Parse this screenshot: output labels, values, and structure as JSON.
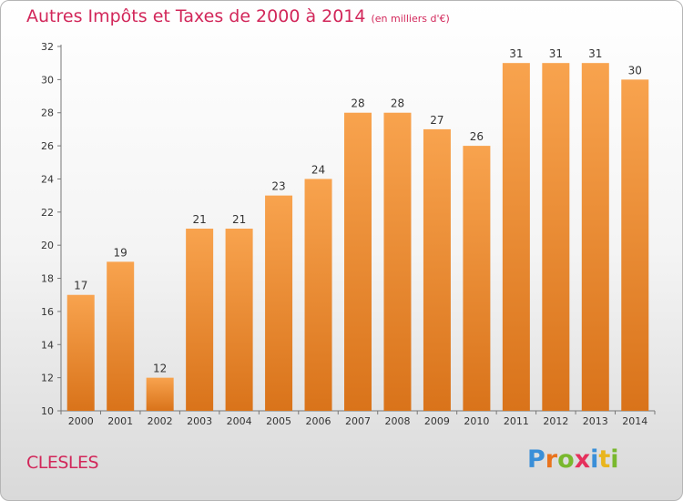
{
  "title": "Autres Impôts et Taxes de 2000 à 2014",
  "subtitle": "(en milliers d'€)",
  "commune": "CLESLES",
  "logo": {
    "letters": [
      "P",
      "r",
      "o",
      "x",
      "i",
      "t",
      "i"
    ],
    "colors": [
      "#3a8fd8",
      "#e9731d",
      "#79b82e",
      "#e5305c",
      "#3a8fd8",
      "#e9b51d",
      "#79b82e"
    ]
  },
  "colors": {
    "bar_top": "#f8a34e",
    "bar_bottom": "#d9731a",
    "text_accent": "#d2275a"
  },
  "chart_data": {
    "type": "bar",
    "title": "Autres Impôts et Taxes de 2000 à 2014",
    "subtitle": "(en milliers d'€)",
    "categories": [
      "2000",
      "2001",
      "2002",
      "2003",
      "2004",
      "2005",
      "2006",
      "2007",
      "2008",
      "2009",
      "2010",
      "2011",
      "2012",
      "2013",
      "2014"
    ],
    "values": [
      17,
      19,
      12,
      21,
      21,
      23,
      24,
      28,
      28,
      27,
      26,
      31,
      31,
      31,
      30
    ],
    "ylim": [
      10,
      32
    ],
    "yticks": [
      10,
      12,
      14,
      16,
      18,
      20,
      22,
      24,
      26,
      28,
      30,
      32
    ],
    "grid": false,
    "legend": "none"
  }
}
